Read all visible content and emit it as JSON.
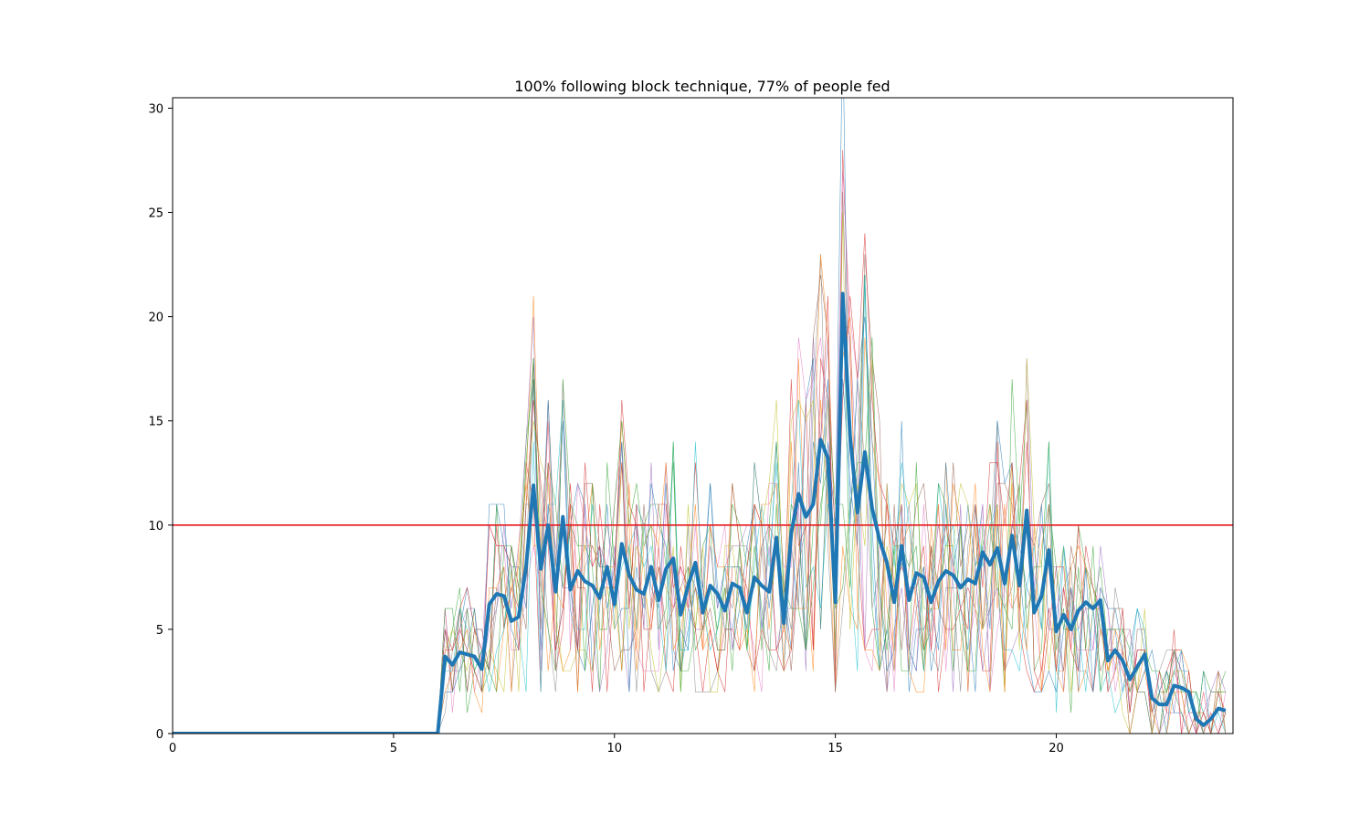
{
  "chart_data": {
    "type": "line",
    "title": "100% following block technique, 77% of people fed",
    "xlabel": "",
    "ylabel": "",
    "xlim": [
      0,
      24
    ],
    "ylim": [
      0,
      30.5
    ],
    "x_ticks": [
      0,
      5,
      10,
      15,
      20
    ],
    "x_tick_labels": [
      "0",
      "5",
      "10",
      "15",
      "20"
    ],
    "y_ticks": [
      0,
      5,
      10,
      15,
      20,
      25,
      30
    ],
    "y_tick_labels": [
      "0",
      "5",
      "10",
      "15",
      "20",
      "25",
      "30"
    ],
    "grid": false,
    "legend": "none",
    "threshold": {
      "y": 10,
      "color": "#e8161b"
    },
    "mean_series": {
      "color": "#1f77b4",
      "x": [
        0,
        0.167,
        0.333,
        0.5,
        0.667,
        0.833,
        1.0,
        1.167,
        1.333,
        1.5,
        1.667,
        1.833,
        2.0,
        2.167,
        2.333,
        2.5,
        2.667,
        2.833,
        3.0,
        3.167,
        3.333,
        3.5,
        3.667,
        3.833,
        4.0,
        4.167,
        4.333,
        4.5,
        4.667,
        4.833,
        5.0,
        5.167,
        5.333,
        5.5,
        5.667,
        5.833,
        6.0,
        6.167,
        6.333,
        6.5,
        6.667,
        6.833,
        7.0,
        7.167,
        7.333,
        7.5,
        7.667,
        7.833,
        8.0,
        8.167,
        8.333,
        8.5,
        8.667,
        8.833,
        9.0,
        9.167,
        9.333,
        9.5,
        9.667,
        9.833,
        10.0,
        10.167,
        10.333,
        10.5,
        10.667,
        10.833,
        11.0,
        11.167,
        11.333,
        11.5,
        11.667,
        11.833,
        12.0,
        12.167,
        12.333,
        12.5,
        12.667,
        12.833,
        13.0,
        13.167,
        13.333,
        13.5,
        13.667,
        13.833,
        14.0,
        14.167,
        14.333,
        14.5,
        14.667,
        14.833,
        15.0,
        15.167,
        15.333,
        15.5,
        15.667,
        15.833,
        16.0,
        16.167,
        16.333,
        16.5,
        16.667,
        16.833,
        17.0,
        17.167,
        17.333,
        17.5,
        17.667,
        17.833,
        18.0,
        18.167,
        18.333,
        18.5,
        18.667,
        18.833,
        19.0,
        19.167,
        19.333,
        19.5,
        19.667,
        19.833,
        20.0,
        20.167,
        20.333,
        20.5,
        20.667,
        20.833,
        21.0,
        21.167,
        21.333,
        21.5,
        21.667,
        21.833,
        22.0,
        22.167,
        22.333,
        22.5,
        22.667,
        22.833,
        23.0,
        23.167,
        23.333,
        23.5,
        23.667,
        23.833
      ],
      "y": [
        0,
        0,
        0,
        0,
        0,
        0,
        0,
        0,
        0,
        0,
        0,
        0,
        0,
        0,
        0,
        0,
        0,
        0,
        0,
        0,
        0,
        0,
        0,
        0,
        0,
        0,
        0,
        0,
        0,
        0,
        0,
        0,
        0,
        0,
        0,
        0,
        0,
        3.7,
        3.3,
        3.9,
        3.8,
        3.7,
        3.1,
        6.2,
        6.7,
        6.6,
        5.4,
        5.6,
        8.0,
        11.9,
        7.9,
        10.0,
        6.8,
        10.4,
        6.9,
        7.8,
        7.3,
        7.1,
        6.5,
        8.0,
        6.2,
        9.1,
        7.6,
        6.9,
        6.7,
        8.0,
        6.4,
        7.9,
        8.4,
        5.7,
        7.1,
        8.2,
        5.8,
        7.1,
        6.7,
        5.9,
        7.2,
        7.0,
        5.8,
        7.5,
        7.1,
        6.8,
        9.4,
        5.3,
        9.6,
        11.5,
        10.4,
        11.0,
        14.1,
        13.2,
        6.3,
        21.1,
        14.3,
        10.6,
        13.5,
        10.8,
        9.3,
        8.2,
        6.3,
        9.0,
        6.4,
        7.7,
        7.5,
        6.3,
        7.3,
        7.8,
        7.6,
        7.0,
        7.4,
        7.2,
        8.7,
        8.1,
        8.9,
        7.2,
        9.5,
        7.1,
        10.7,
        5.8,
        6.6,
        8.8,
        4.9,
        5.7,
        5.0,
        5.9,
        6.3,
        6.0,
        6.4,
        3.5,
        4.0,
        3.5,
        2.6,
        3.2,
        3.8,
        1.7,
        1.4,
        1.4,
        2.3,
        2.2,
        2.0,
        0.7,
        0.4,
        0.7,
        1.2,
        1.1
      ]
    },
    "simulation_run_count": 14
  }
}
